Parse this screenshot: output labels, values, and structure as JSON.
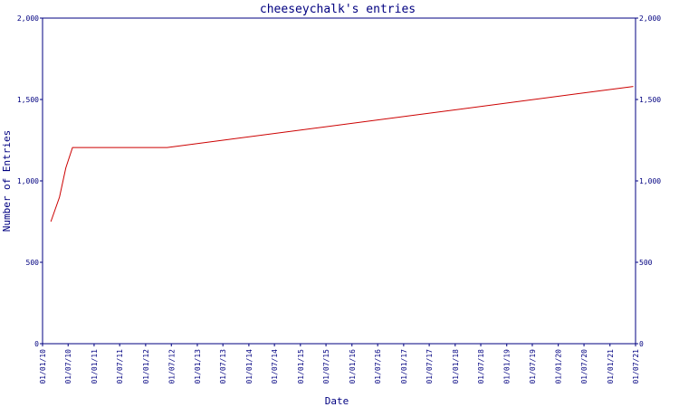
{
  "colors": {
    "axis": "#000080",
    "line": "#cc0000",
    "background": "#ffffff"
  },
  "chart_data": {
    "type": "line",
    "title": "cheeseychalk's entries",
    "xlabel": "Date",
    "ylabel": "Number of Entries",
    "ylim": [
      0,
      2000
    ],
    "xlim": [
      "2010-01-01",
      "2021-07-01"
    ],
    "yticks": [
      "0",
      "500",
      "1,000",
      "1,500",
      "2,000"
    ],
    "xticks": [
      "01/01/10",
      "01/07/10",
      "01/01/11",
      "01/07/11",
      "01/01/12",
      "01/07/12",
      "01/01/13",
      "01/07/13",
      "01/01/14",
      "01/07/14",
      "01/01/15",
      "01/07/15",
      "01/01/16",
      "01/07/16",
      "01/01/17",
      "01/07/17",
      "01/01/18",
      "01/07/18",
      "01/01/19",
      "01/07/19",
      "01/01/20",
      "01/07/20",
      "01/01/21",
      "01/07/21"
    ],
    "grid": false,
    "series": [
      {
        "x": [
          "2010-03-01",
          "2010-05-01",
          "2010-06-15",
          "2010-08-01",
          "2012-06-01",
          "2021-06-15"
        ],
        "y": [
          750,
          900,
          1080,
          1205,
          1205,
          1580
        ]
      }
    ]
  }
}
